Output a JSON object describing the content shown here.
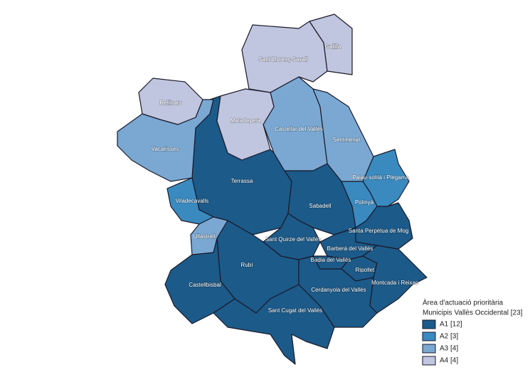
{
  "map": {
    "legend": {
      "title": "Àrea d'actuació prioritària",
      "subtitle": "Municipis Vallès Occidental [23]",
      "items": [
        {
          "label": "A1 [12]",
          "color": "#1c5a89",
          "municipalities": [
            "Terrassa",
            "Sabadell",
            "Rubí",
            "Sant Cugat del Vallès",
            "Castellbisbal",
            "Sant Quirze del Vallès",
            "Cerdanyola del Vallès",
            "Barberà del Vallès",
            "Badia del Vallès",
            "Ripollet",
            "Montcada i Reixac",
            "Santa Perpètua de Mog"
          ]
        },
        {
          "label": "A2 [3]",
          "color": "#3a8ac0",
          "municipalities": [
            "Viladecavalls",
            "Palau-solità i Plegama",
            "Polinyà"
          ]
        },
        {
          "label": "A3 [4]",
          "color": "#7aa8d2",
          "municipalities": [
            "Castellar del Vallès",
            "Sentmenat",
            "Vacarisses",
            "Ullastrell"
          ]
        },
        {
          "label": "A4 [4]",
          "color": "#c0c6df",
          "municipalities": [
            "Sant Llorenç Savall",
            "Gallifa",
            "Rellinars",
            "Matadepera"
          ]
        }
      ]
    }
  }
}
